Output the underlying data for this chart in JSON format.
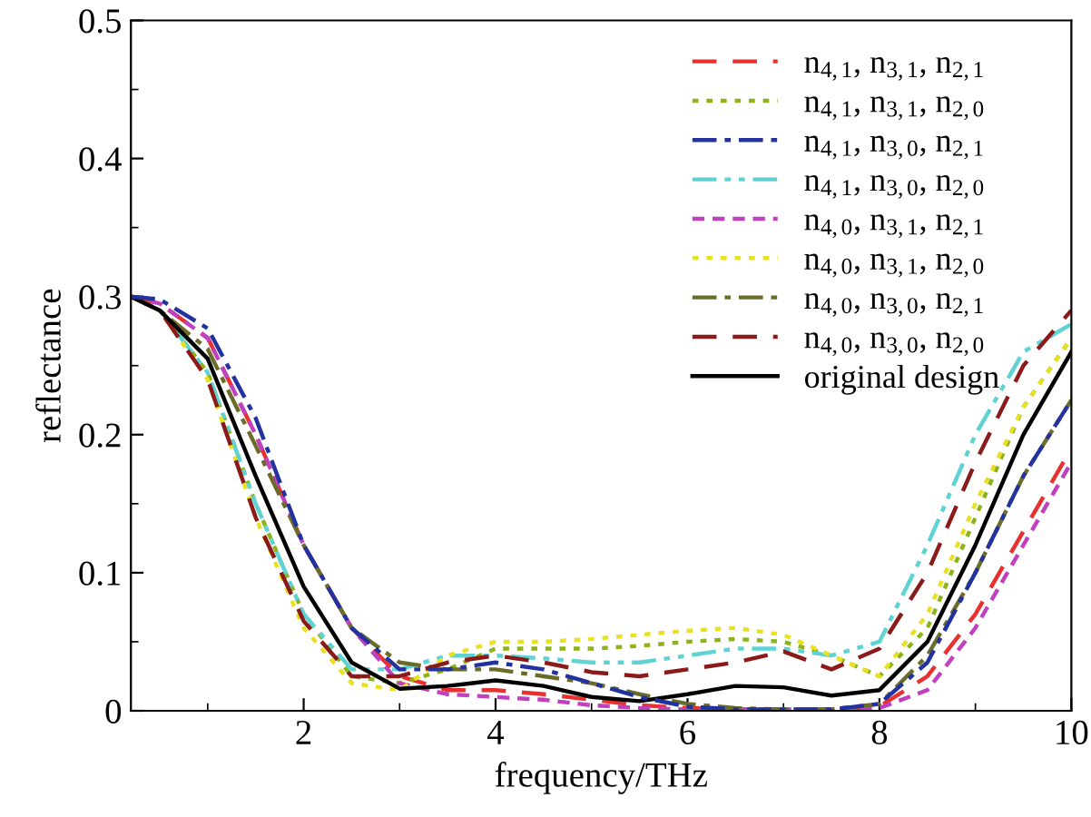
{
  "chart_data": {
    "type": "line",
    "xlabel": "frequency/THz",
    "ylabel": "reflectance",
    "x": [
      0.2,
      0.5,
      1,
      1.5,
      2,
      2.5,
      3,
      3.5,
      4,
      4.5,
      5,
      5.5,
      6,
      6.5,
      7,
      7.5,
      8,
      8.5,
      9,
      9.5,
      10
    ],
    "xlim": [
      0.2,
      10
    ],
    "xticks": [
      2,
      4,
      6,
      8,
      10
    ],
    "ylim": [
      0,
      0.5
    ],
    "yticks": [
      0,
      0.1,
      0.2,
      0.3,
      0.4,
      0.5
    ],
    "grid": false,
    "legend": "top right",
    "series": [
      {
        "name": "n$_{4,1}$, n$_{3,1}$, n$_{2,1}$",
        "color": "#e8312f",
        "line_style": "dashed",
        "values": [
          0.3,
          0.295,
          0.27,
          0.2,
          0.12,
          0.06,
          0.025,
          0.015,
          0.015,
          0.012,
          0.008,
          0.004,
          0.002,
          0.001,
          0.001,
          0.001,
          0.003,
          0.025,
          0.07,
          0.13,
          0.19
        ]
      },
      {
        "name": "n$_{4,1}$, n$_{3,1}$, n$_{2,0}$",
        "color": "#8cb31a",
        "line_style": "dotted",
        "values": [
          0.3,
          0.29,
          0.245,
          0.15,
          0.07,
          0.025,
          0.02,
          0.03,
          0.045,
          0.045,
          0.045,
          0.047,
          0.05,
          0.052,
          0.05,
          0.04,
          0.025,
          0.06,
          0.14,
          0.22,
          0.27
        ]
      },
      {
        "name": "n$_{4,1}$, n$_{3,0}$, n$_{2,1}$",
        "color": "#2233a0",
        "line_style": "dashdot",
        "values": [
          0.3,
          0.298,
          0.277,
          0.212,
          0.12,
          0.06,
          0.03,
          0.03,
          0.035,
          0.03,
          0.02,
          0.01,
          0.003,
          0.001,
          0.001,
          0.001,
          0.005,
          0.035,
          0.1,
          0.17,
          0.225
        ]
      },
      {
        "name": "n$_{4,1}$, n$_{3,0}$, n$_{2,0}$",
        "color": "#5fd3d3",
        "line_style": "dashdotdot",
        "values": [
          0.3,
          0.29,
          0.245,
          0.15,
          0.07,
          0.03,
          0.03,
          0.04,
          0.04,
          0.038,
          0.035,
          0.035,
          0.04,
          0.045,
          0.045,
          0.04,
          0.05,
          0.12,
          0.2,
          0.26,
          0.28
        ]
      },
      {
        "name": "n$_{4,0}$, n$_{3,1}$, n$_{2,1}$",
        "color": "#c040c0",
        "line_style": "shortdash",
        "values": [
          0.3,
          0.295,
          0.27,
          0.2,
          0.12,
          0.06,
          0.02,
          0.012,
          0.01,
          0.008,
          0.004,
          0.002,
          0.001,
          0.001,
          0.001,
          0.001,
          0.002,
          0.015,
          0.06,
          0.12,
          0.18
        ]
      },
      {
        "name": "n$_{4,0}$, n$_{3,1}$, n$_{2,0}$",
        "color": "#e8e020",
        "line_style": "dotted",
        "values": [
          0.3,
          0.29,
          0.24,
          0.14,
          0.06,
          0.02,
          0.015,
          0.04,
          0.05,
          0.05,
          0.052,
          0.055,
          0.058,
          0.06,
          0.055,
          0.04,
          0.025,
          0.07,
          0.15,
          0.22,
          0.27
        ]
      },
      {
        "name": "n$_{4,0}$, n$_{3,0}$, n$_{2,1}$",
        "color": "#6b6b2a",
        "line_style": "dashdot",
        "values": [
          0.3,
          0.29,
          0.262,
          0.192,
          0.12,
          0.06,
          0.035,
          0.03,
          0.03,
          0.025,
          0.02,
          0.012,
          0.005,
          0.002,
          0.001,
          0.001,
          0.005,
          0.04,
          0.1,
          0.17,
          0.225
        ]
      },
      {
        "name": "n$_{4,0}$, n$_{3,0}$, n$_{2,0}$",
        "color": "#8b1a1a",
        "line_style": "dashed",
        "values": [
          0.3,
          0.29,
          0.24,
          0.14,
          0.065,
          0.025,
          0.025,
          0.035,
          0.04,
          0.035,
          0.028,
          0.025,
          0.03,
          0.035,
          0.043,
          0.03,
          0.045,
          0.1,
          0.18,
          0.25,
          0.29
        ]
      },
      {
        "name": "original design",
        "color": "#000000",
        "line_style": "solid",
        "values": [
          0.3,
          0.29,
          0.255,
          0.17,
          0.09,
          0.035,
          0.016,
          0.018,
          0.022,
          0.018,
          0.01,
          0.007,
          0.012,
          0.018,
          0.017,
          0.011,
          0.015,
          0.05,
          0.12,
          0.2,
          0.26
        ]
      }
    ]
  }
}
